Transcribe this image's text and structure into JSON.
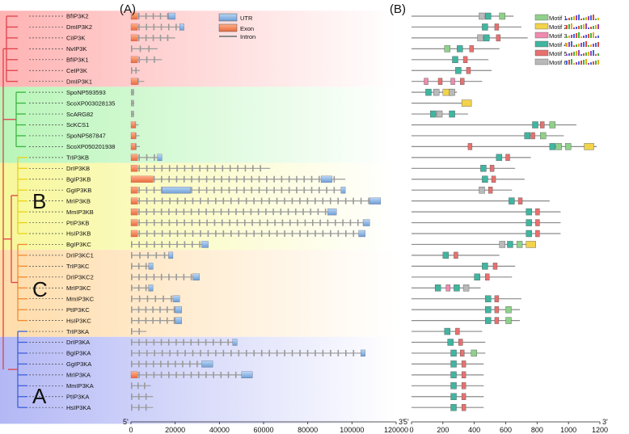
{
  "panels": {
    "a": "(A)",
    "b": "(B)"
  },
  "clades": {
    "a": "A",
    "b": "B",
    "c": "C"
  },
  "axes": {
    "gene": {
      "ticks": [
        0,
        20000,
        40000,
        60000,
        80000,
        100000,
        120000
      ],
      "max": 120000,
      "left_end": "5'",
      "right_end": "3'"
    },
    "motif": {
      "ticks": [
        0,
        200,
        400,
        600,
        800,
        1000,
        1200
      ],
      "max": 1200,
      "left_end": "5'",
      "right_end": "3'"
    }
  },
  "gene_legend": [
    {
      "label": "UTR",
      "kind": "utr"
    },
    {
      "label": "Exon",
      "kind": "exon"
    },
    {
      "label": "Intron",
      "kind": "intron"
    }
  ],
  "motif_legend": [
    {
      "label": "Motif 1",
      "color": "#8fd18a"
    },
    {
      "label": "Motif 2",
      "color": "#f2d34a"
    },
    {
      "label": "Motif 3",
      "color": "#f08ab0"
    },
    {
      "label": "Motif 4",
      "color": "#40b5a0"
    },
    {
      "label": "Motif 5",
      "color": "#e8706e"
    },
    {
      "label": "Motif 6",
      "color": "#b9b9b9"
    }
  ],
  "colors": {
    "utr": "#8fb8e6",
    "exon": "#f07e55",
    "intron": "#9a9a9a",
    "tree_red": "#e0404a",
    "tree_green": "#3bb540",
    "tree_yellow": "#e8d21a",
    "tree_orange": "#f08a30",
    "tree_blue": "#4060d8"
  },
  "bands": [
    {
      "name": "red",
      "color": "#ffb3b3",
      "from": 0,
      "to": 6
    },
    {
      "name": "green",
      "color": "#b8f5b8",
      "from": 7,
      "to": 13
    },
    {
      "name": "yellow",
      "color": "#f7f79a",
      "from": 14,
      "to": 21
    },
    {
      "name": "orange",
      "color": "#ffdcaa",
      "from": 22,
      "to": 29
    },
    {
      "name": "blue",
      "color": "#b3b8f5",
      "from": 30,
      "to": 37
    }
  ],
  "genes": [
    {
      "name": "BfIP3K2",
      "len": 20000,
      "utr": [
        [
          17000,
          20000
        ]
      ],
      "exons": [
        3000
      ]
    },
    {
      "name": "DmIP3K2",
      "len": 24000,
      "utr": [
        [
          22000,
          24000
        ]
      ],
      "exons": [
        3000
      ]
    },
    {
      "name": "CiIP3K",
      "len": 20000,
      "utr": [],
      "exons": [
        3000
      ]
    },
    {
      "name": "NvIP3K",
      "len": 12000,
      "utr": [],
      "exons": []
    },
    {
      "name": "BfIP3K1",
      "len": 14000,
      "utr": [],
      "exons": [
        3000
      ]
    },
    {
      "name": "CeIP3K",
      "len": 4000,
      "utr": [],
      "exons": []
    },
    {
      "name": "DmIP3K1",
      "len": 6000,
      "utr": [],
      "exons": [
        3000
      ]
    },
    {
      "name": "SpoNP593593",
      "len": 1500,
      "utr": [],
      "exons": []
    },
    {
      "name": "ScoXP003028135",
      "len": 1500,
      "utr": [],
      "exons": []
    },
    {
      "name": "ScARG82",
      "len": 1500,
      "utr": [],
      "exons": []
    },
    {
      "name": "ScKCS1",
      "len": 3500,
      "utr": [],
      "exons": [
        2000
      ]
    },
    {
      "name": "SpoNP587847",
      "len": 3800,
      "utr": [],
      "exons": [
        2000
      ]
    },
    {
      "name": "ScoXP050201938",
      "len": 4000,
      "utr": [],
      "exons": [
        2000
      ]
    },
    {
      "name": "TrIP3KB",
      "len": 14000,
      "utr": [
        [
          12000,
          14000
        ]
      ],
      "exons": [
        3000
      ]
    },
    {
      "name": "DrIP3KB",
      "len": 63000,
      "utr": [],
      "exons": [
        3000
      ]
    },
    {
      "name": "BgIP3KB",
      "len": 97000,
      "utr": [
        [
          86000,
          91000
        ]
      ],
      "exons": [
        10000
      ]
    },
    {
      "name": "GgIP3KB",
      "len": 97000,
      "utr": [
        [
          14000,
          27000
        ],
        [
          95000,
          97000
        ]
      ],
      "exons": [
        3000
      ]
    },
    {
      "name": "MrIP3KB",
      "len": 113000,
      "utr": [
        [
          108000,
          113000
        ]
      ],
      "exons": [
        3000
      ]
    },
    {
      "name": "MmIP3KB",
      "len": 93000,
      "utr": [
        [
          89000,
          93000
        ]
      ],
      "exons": [
        3000
      ]
    },
    {
      "name": "PtIP3KB",
      "len": 108000,
      "utr": [
        [
          105000,
          108000
        ]
      ],
      "exons": [
        3000
      ]
    },
    {
      "name": "HsIP3KB",
      "len": 106000,
      "utr": [
        [
          103000,
          106000
        ]
      ],
      "exons": [
        3000
      ]
    },
    {
      "name": "BgIP3KC",
      "len": 35000,
      "utr": [
        [
          32000,
          35000
        ]
      ],
      "exons": []
    },
    {
      "name": "DrIP3KC1",
      "len": 19000,
      "utr": [
        [
          17000,
          19000
        ]
      ],
      "exons": []
    },
    {
      "name": "TrIP3KC",
      "len": 10000,
      "utr": [
        [
          8000,
          10000
        ]
      ],
      "exons": []
    },
    {
      "name": "DrIP3KC2",
      "len": 31000,
      "utr": [
        [
          28000,
          31000
        ]
      ],
      "exons": []
    },
    {
      "name": "MrIP3KC",
      "len": 10000,
      "utr": [
        [
          8000,
          10000
        ]
      ],
      "exons": []
    },
    {
      "name": "MmIP3KC",
      "len": 22000,
      "utr": [
        [
          19000,
          22000
        ]
      ],
      "exons": []
    },
    {
      "name": "PtIP3KC",
      "len": 23000,
      "utr": [
        [
          20000,
          23000
        ]
      ],
      "exons": []
    },
    {
      "name": "HsIP3KC",
      "len": 23000,
      "utr": [
        [
          20000,
          23000
        ]
      ],
      "exons": []
    },
    {
      "name": "TrIP3KA",
      "len": 7000,
      "utr": [],
      "exons": []
    },
    {
      "name": "DrIP3KA",
      "len": 48000,
      "utr": [
        [
          46000,
          48000
        ]
      ],
      "exons": []
    },
    {
      "name": "BgIP3KA",
      "len": 106000,
      "utr": [
        [
          104000,
          106000
        ]
      ],
      "exons": []
    },
    {
      "name": "GgIP3KA",
      "len": 37000,
      "utr": [
        [
          32000,
          37000
        ]
      ],
      "exons": []
    },
    {
      "name": "MrIP3KA",
      "len": 55000,
      "utr": [
        [
          50000,
          55000
        ]
      ],
      "exons": [
        3000
      ]
    },
    {
      "name": "MmIP3KA",
      "len": 9000,
      "utr": [],
      "exons": []
    },
    {
      "name": "PtIP3KA",
      "len": 10000,
      "utr": [],
      "exons": []
    },
    {
      "name": "HsIP3KA",
      "len": 10000,
      "utr": [],
      "exons": []
    }
  ],
  "proteins": [
    {
      "len": 650,
      "motifs": [
        [
          430,
          6
        ],
        [
          470,
          4
        ],
        [
          560,
          1
        ]
      ]
    },
    {
      "len": 700,
      "motifs": [
        [
          450,
          4
        ],
        [
          530,
          5
        ]
      ]
    },
    {
      "len": 740,
      "motifs": [
        [
          420,
          6
        ],
        [
          460,
          4
        ],
        [
          540,
          5
        ]
      ]
    },
    {
      "len": 560,
      "motifs": [
        [
          210,
          1
        ],
        [
          290,
          4
        ],
        [
          370,
          5
        ]
      ]
    },
    {
      "len": 490,
      "motifs": [
        [
          260,
          4
        ],
        [
          330,
          5
        ]
      ]
    },
    {
      "len": 510,
      "motifs": [
        [
          280,
          4
        ],
        [
          350,
          5
        ]
      ]
    },
    {
      "len": 450,
      "motifs": [
        [
          80,
          3
        ],
        [
          170,
          5
        ],
        [
          250,
          3
        ],
        [
          310,
          5
        ]
      ]
    },
    {
      "len": 290,
      "motifs": [
        [
          90,
          4
        ],
        [
          140,
          6
        ],
        [
          200,
          2
        ],
        [
          240,
          6
        ]
      ]
    },
    {
      "len": 380,
      "motifs": [
        [
          320,
          2
        ]
      ]
    },
    {
      "len": 360,
      "motifs": [
        [
          120,
          4
        ],
        [
          160,
          6
        ],
        [
          240,
          4
        ]
      ]
    },
    {
      "len": 1050,
      "motifs": [
        [
          770,
          4
        ],
        [
          820,
          5
        ],
        [
          880,
          1
        ]
      ]
    },
    {
      "len": 970,
      "motifs": [
        [
          720,
          4
        ],
        [
          760,
          5
        ],
        [
          820,
          1
        ]
      ]
    },
    {
      "len": 1180,
      "motifs": [
        [
          360,
          5
        ],
        [
          880,
          4
        ],
        [
          920,
          1
        ],
        [
          980,
          1
        ],
        [
          1100,
          2
        ]
      ]
    },
    {
      "len": 760,
      "motifs": [
        [
          540,
          4
        ],
        [
          600,
          5
        ]
      ]
    },
    {
      "len": 660,
      "motifs": [
        [
          440,
          4
        ],
        [
          500,
          5
        ]
      ]
    },
    {
      "len": 720,
      "motifs": [
        [
          450,
          4
        ],
        [
          510,
          5
        ]
      ]
    },
    {
      "len": 640,
      "motifs": [
        [
          430,
          6
        ],
        [
          490,
          5
        ]
      ]
    },
    {
      "len": 880,
      "motifs": [
        [
          620,
          4
        ],
        [
          680,
          5
        ]
      ]
    },
    {
      "len": 950,
      "motifs": [
        [
          730,
          4
        ],
        [
          790,
          5
        ]
      ]
    },
    {
      "len": 950,
      "motifs": [
        [
          730,
          4
        ],
        [
          790,
          5
        ]
      ]
    },
    {
      "len": 950,
      "motifs": [
        [
          730,
          4
        ],
        [
          790,
          5
        ]
      ]
    },
    {
      "len": 780,
      "motifs": [
        [
          560,
          6
        ],
        [
          610,
          4
        ],
        [
          670,
          1
        ],
        [
          730,
          2
        ]
      ]
    },
    {
      "len": 560,
      "motifs": [
        [
          200,
          4
        ],
        [
          270,
          5
        ]
      ]
    },
    {
      "len": 660,
      "motifs": [
        [
          450,
          4
        ],
        [
          520,
          5
        ]
      ]
    },
    {
      "len": 640,
      "motifs": [
        [
          400,
          4
        ],
        [
          470,
          5
        ]
      ]
    },
    {
      "len": 440,
      "motifs": [
        [
          150,
          4
        ],
        [
          220,
          3
        ],
        [
          270,
          4
        ],
        [
          330,
          6
        ]
      ]
    },
    {
      "len": 700,
      "motifs": [
        [
          470,
          4
        ],
        [
          530,
          5
        ]
      ]
    },
    {
      "len": 690,
      "motifs": [
        [
          470,
          4
        ],
        [
          530,
          5
        ],
        [
          600,
          1
        ]
      ]
    },
    {
      "len": 690,
      "motifs": [
        [
          470,
          4
        ],
        [
          530,
          5
        ],
        [
          600,
          1
        ]
      ]
    },
    {
      "len": 450,
      "motifs": [
        [
          210,
          4
        ],
        [
          280,
          5
        ]
      ]
    },
    {
      "len": 470,
      "motifs": [
        [
          230,
          4
        ],
        [
          300,
          5
        ]
      ]
    },
    {
      "len": 470,
      "motifs": [
        [
          250,
          4
        ],
        [
          310,
          5
        ],
        [
          380,
          1
        ]
      ]
    },
    {
      "len": 460,
      "motifs": [
        [
          250,
          4
        ],
        [
          320,
          5
        ]
      ]
    },
    {
      "len": 460,
      "motifs": [
        [
          250,
          4
        ],
        [
          320,
          5
        ]
      ]
    },
    {
      "len": 460,
      "motifs": [
        [
          250,
          4
        ],
        [
          320,
          5
        ]
      ]
    },
    {
      "len": 460,
      "motifs": [
        [
          250,
          4
        ],
        [
          320,
          5
        ]
      ]
    },
    {
      "len": 460,
      "motifs": [
        [
          250,
          4
        ],
        [
          320,
          5
        ]
      ]
    }
  ]
}
